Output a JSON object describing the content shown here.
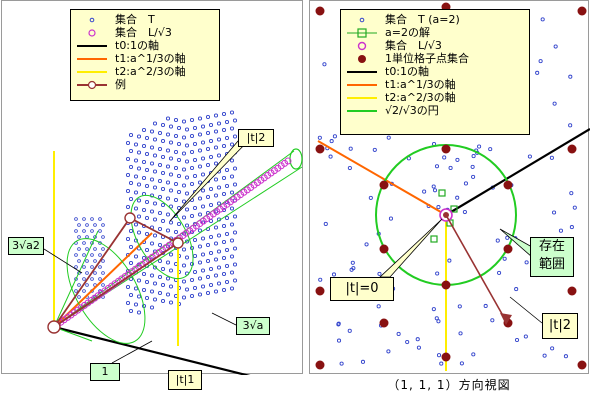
{
  "left_panel": {
    "legend": [
      {
        "label": "集合　T",
        "symbol": "blue-dot-icon"
      },
      {
        "label": "集合　L/√3",
        "symbol": "magenta-circle-icon"
      },
      {
        "label": "t0:1の軸",
        "symbol": "black-line-icon"
      },
      {
        "label": "t1:a^1/3の軸",
        "symbol": "orange-line-icon"
      },
      {
        "label": "t2:a^2/3の軸",
        "symbol": "yellow-line-icon"
      },
      {
        "label": "例",
        "symbol": "brown-line-circle-icon"
      }
    ],
    "labels": {
      "t2": "|t|2",
      "cube_a2": "3√a2",
      "cube_a": "3√a",
      "one": "1",
      "t1": "|t|1"
    }
  },
  "right_panel": {
    "legend": [
      {
        "label": "集合　T (a=2)",
        "symbol": "blue-dot-icon"
      },
      {
        "label": "a=2の解",
        "symbol": "green-square-icon"
      },
      {
        "label": "集合　L/√3",
        "symbol": "magenta-circle-icon"
      },
      {
        "label": "1単位格子点集合",
        "symbol": "darkred-dot-icon"
      },
      {
        "label": "t0:1の軸",
        "symbol": "black-line-icon"
      },
      {
        "label": "t1:a^1/3の軸",
        "symbol": "orange-line-icon"
      },
      {
        "label": "t2:a^2/3の軸",
        "symbol": "yellow-line-icon"
      },
      {
        "label": "√2/√3の円",
        "symbol": "green-line-icon"
      }
    ],
    "labels": {
      "t_zero": "|t|=0",
      "range_line1": "存在",
      "range_line2": "範囲",
      "t2": "|t|2"
    }
  },
  "caption": "（1, 1, 1）方向視図",
  "colors": {
    "set_t": "#3344cc",
    "set_l": "#cc33cc",
    "axis_t0": "#000000",
    "axis_t1": "#ff6600",
    "axis_t2": "#ffee00",
    "example": "#993333",
    "lattice": "#881111",
    "circle": "#22cc22",
    "legend_bg": "#ffffcc",
    "callout_green": "#ccffcc"
  }
}
